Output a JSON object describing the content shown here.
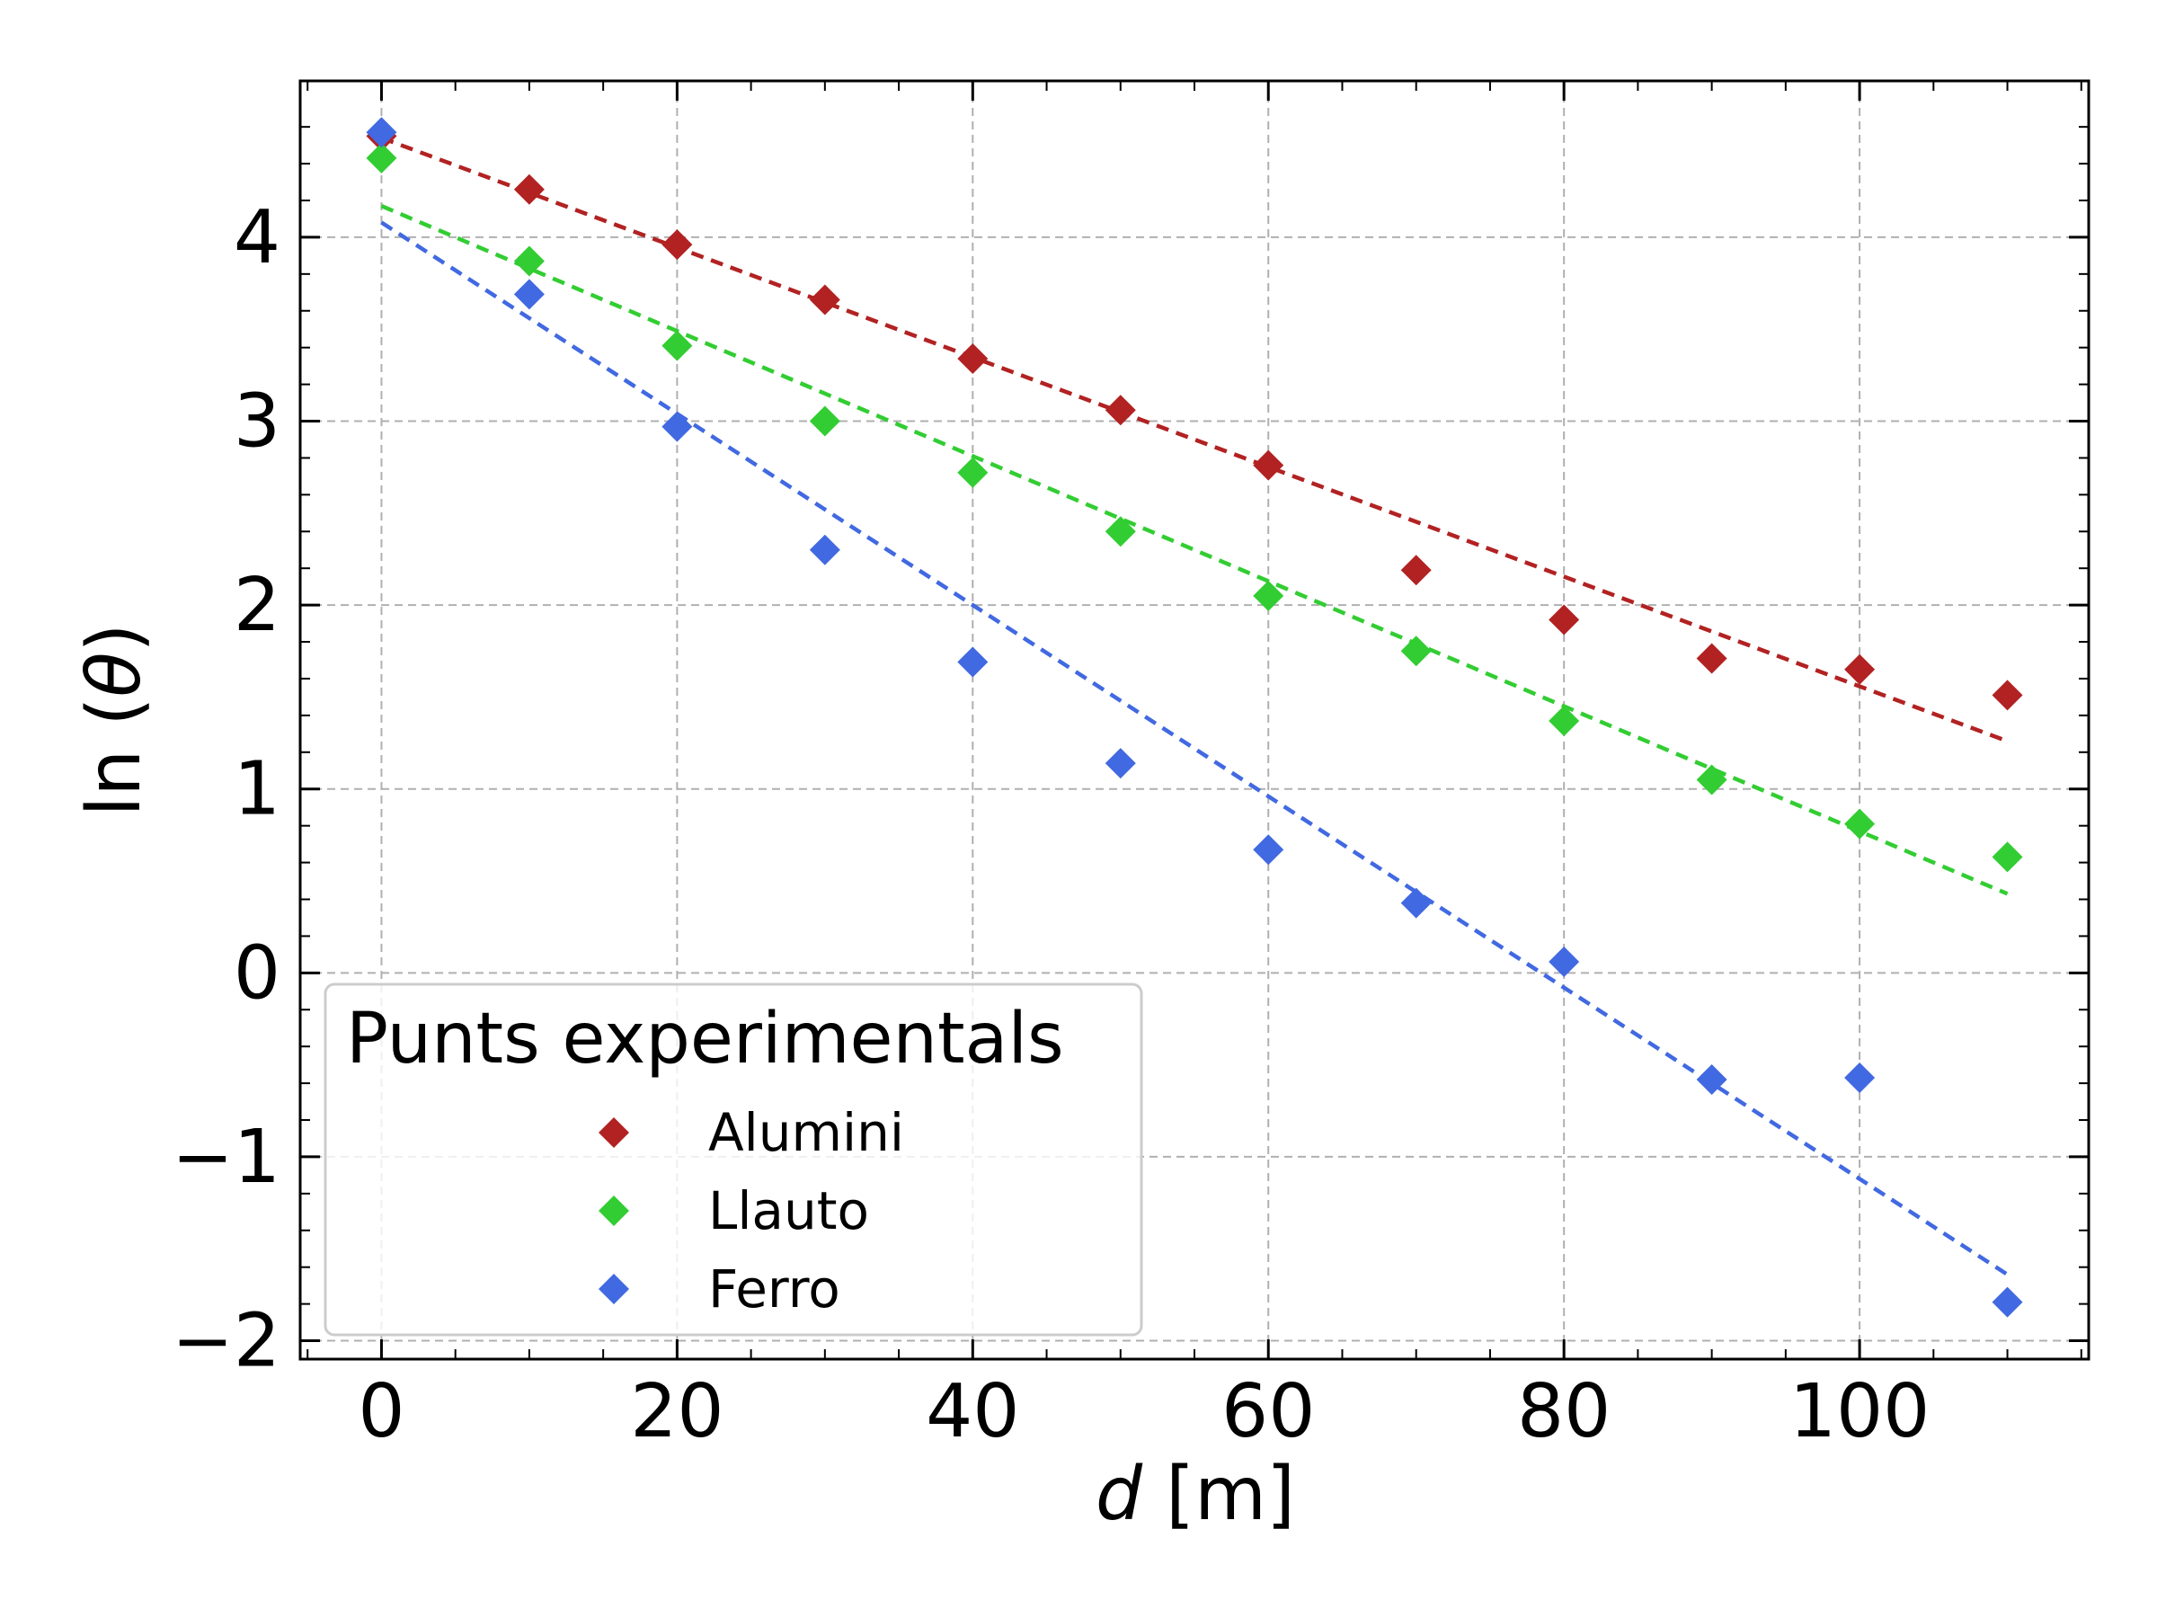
{
  "chart_data": {
    "type": "scatter",
    "xlabel_var": "d",
    "xlabel_unit": " [m]",
    "ylabel_prefix": "ln",
    "ylabel_var": "θ",
    "xlim": [
      -5.5,
      115.5
    ],
    "ylim": [
      -2.1,
      4.85
    ],
    "x_ticks": [
      0,
      20,
      40,
      60,
      80,
      100
    ],
    "x_tick_labels": [
      "0",
      "20",
      "40",
      "60",
      "80",
      "100"
    ],
    "y_ticks": [
      -2,
      -1,
      0,
      1,
      2,
      3,
      4
    ],
    "y_tick_labels": [
      "−2",
      "−1",
      "0",
      "1",
      "2",
      "3",
      "4"
    ],
    "grid": true,
    "legend": {
      "title": "Punts experimentals",
      "placement": "lower-left"
    },
    "series": [
      {
        "name": "Alumini",
        "color": "#b22222",
        "marker": "diamond",
        "x": [
          0,
          10,
          20,
          30,
          40,
          50,
          60,
          70,
          80,
          90,
          100,
          110
        ],
        "y": [
          4.55,
          4.26,
          3.96,
          3.66,
          3.34,
          3.06,
          2.76,
          2.19,
          1.92,
          1.71,
          1.65,
          1.51
        ],
        "fit": {
          "x": [
            0,
            110
          ],
          "y": [
            4.54,
            1.26
          ]
        }
      },
      {
        "name": "Llauto",
        "color": "#32cd32",
        "marker": "diamond",
        "x": [
          0,
          10,
          20,
          30,
          40,
          50,
          60,
          70,
          80,
          90,
          100,
          110
        ],
        "y": [
          4.43,
          3.87,
          3.41,
          3.0,
          2.72,
          2.4,
          2.05,
          1.75,
          1.37,
          1.05,
          0.81,
          0.63
        ],
        "fit": {
          "x": [
            0,
            110
          ],
          "y": [
            4.17,
            0.43
          ]
        }
      },
      {
        "name": "Ferro",
        "color": "#4169e1",
        "marker": "diamond",
        "x": [
          0,
          10,
          20,
          30,
          40,
          50,
          60,
          70,
          80,
          90,
          100,
          110
        ],
        "y": [
          4.57,
          3.69,
          2.97,
          2.3,
          1.69,
          1.14,
          0.67,
          0.38,
          0.06,
          -0.58,
          -0.57,
          -1.79
        ],
        "fit": {
          "x": [
            0,
            110
          ],
          "y": [
            4.08,
            -1.64
          ]
        }
      }
    ]
  }
}
